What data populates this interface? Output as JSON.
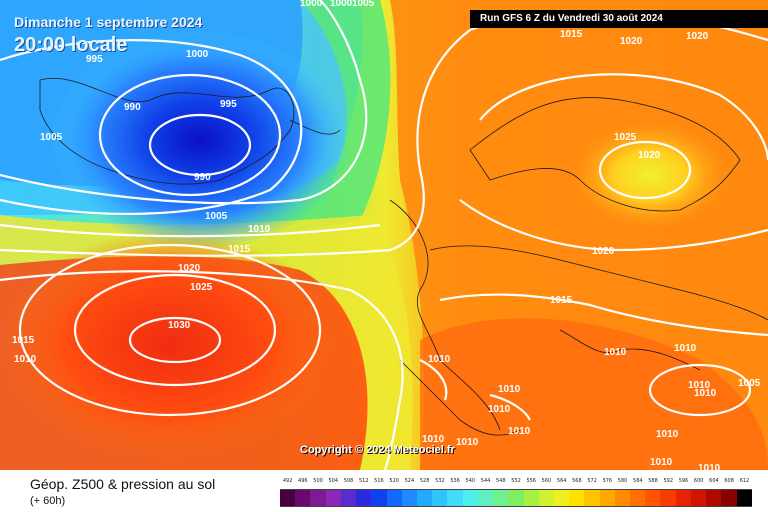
{
  "header": {
    "date_label": "Dimanche 1 septembre 2024",
    "time_label": "20:00 locale",
    "run_label": "Run GFS 6 Z du Vendredi 30 août 2024"
  },
  "copyright": "Copyright © 2024 Meteociel.fr",
  "footer": {
    "title": "Géop. Z500 & pression au sol",
    "subtitle": "(+ 60h)"
  },
  "pressure_labels": [
    "1000",
    "1000",
    "1005",
    "995",
    "1005",
    "990",
    "995",
    "990",
    "1000",
    "1005",
    "1010",
    "1015",
    "1020",
    "1025",
    "1030",
    "1015",
    "1010",
    "1015",
    "1020",
    "1020",
    "1025",
    "1020",
    "1020",
    "1015",
    "1010",
    "1010",
    "1010",
    "1010",
    "1010",
    "1010",
    "1005",
    "1010",
    "1010",
    "1010",
    "1010",
    "1010",
    "1010",
    "1010"
  ],
  "legend": {
    "labels": [
      "492",
      "496",
      "500",
      "504",
      "508",
      "512",
      "516",
      "520",
      "524",
      "528",
      "532",
      "536",
      "540",
      "544",
      "548",
      "552",
      "556",
      "560",
      "564",
      "568",
      "572",
      "576",
      "580",
      "584",
      "588",
      "592",
      "596",
      "600",
      "604",
      "608",
      "612"
    ],
    "colors": [
      "#4a0040",
      "#6a0a6e",
      "#7e1a94",
      "#8a2ab4",
      "#5a2cd0",
      "#2a2ae0",
      "#1040f0",
      "#1468ff",
      "#1e8cff",
      "#22aaff",
      "#30c4ff",
      "#40dcf8",
      "#50eeea",
      "#60f0c0",
      "#70f090",
      "#80ee60",
      "#a8f040",
      "#d0f030",
      "#f0f020",
      "#ffe000",
      "#ffc400",
      "#ffa800",
      "#ff8c00",
      "#ff7000",
      "#ff5400",
      "#f83c00",
      "#e82400",
      "#d01400",
      "#b00800",
      "#880000",
      "#000000"
    ]
  },
  "map_colors": {
    "low_core": "#0a1ad8",
    "low_inner": "#1060f0",
    "cold_blue": "#2a9cff",
    "cyan": "#46e0f6",
    "green": "#58e878",
    "yellow": "#f0f030",
    "orange": "#ff8c10",
    "red": "#ff3c0c",
    "isobar": "#ffffff"
  }
}
